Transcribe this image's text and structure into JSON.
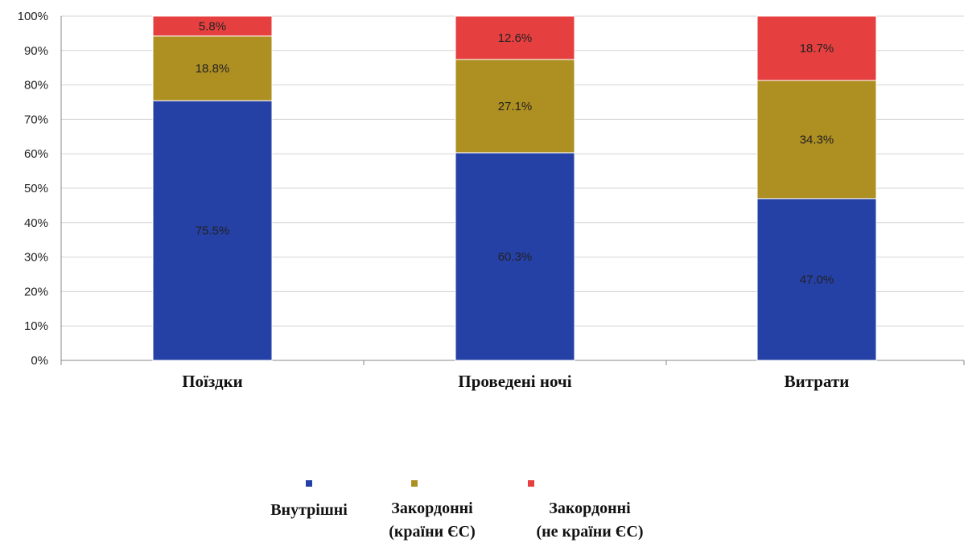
{
  "chart_data": {
    "type": "bar",
    "stacked": true,
    "percent_stacked": true,
    "categories": [
      "Поїздки",
      "Проведені ночі",
      "Витрати"
    ],
    "series": [
      {
        "name": "Внутрішні",
        "color": "#2541a6",
        "values": [
          75.5,
          60.3,
          47.0
        ],
        "labels": [
          "75.5%",
          "60.3%",
          "47.0%"
        ]
      },
      {
        "name": "Закордонні (країни ЄС)",
        "name_lines": [
          "Закордонні",
          "(країни ЄС)"
        ],
        "color": "#ae8f22",
        "values": [
          18.8,
          27.1,
          34.3
        ],
        "labels": [
          "18.8%",
          "27.1%",
          "34.3%"
        ]
      },
      {
        "name": "Закордонні (не країни ЄС)",
        "name_lines": [
          "Закордонні",
          "(не країни ЄС)"
        ],
        "color": "#e5403f",
        "values": [
          5.8,
          12.6,
          18.7
        ],
        "labels": [
          "5.8%",
          "12.6%",
          "18.7%"
        ]
      }
    ],
    "y_ticks": [
      "0%",
      "10%",
      "20%",
      "30%",
      "40%",
      "50%",
      "60%",
      "70%",
      "80%",
      "90%",
      "100%"
    ],
    "ylim": [
      0,
      100
    ],
    "grid": true,
    "legend_position": "bottom-center"
  }
}
